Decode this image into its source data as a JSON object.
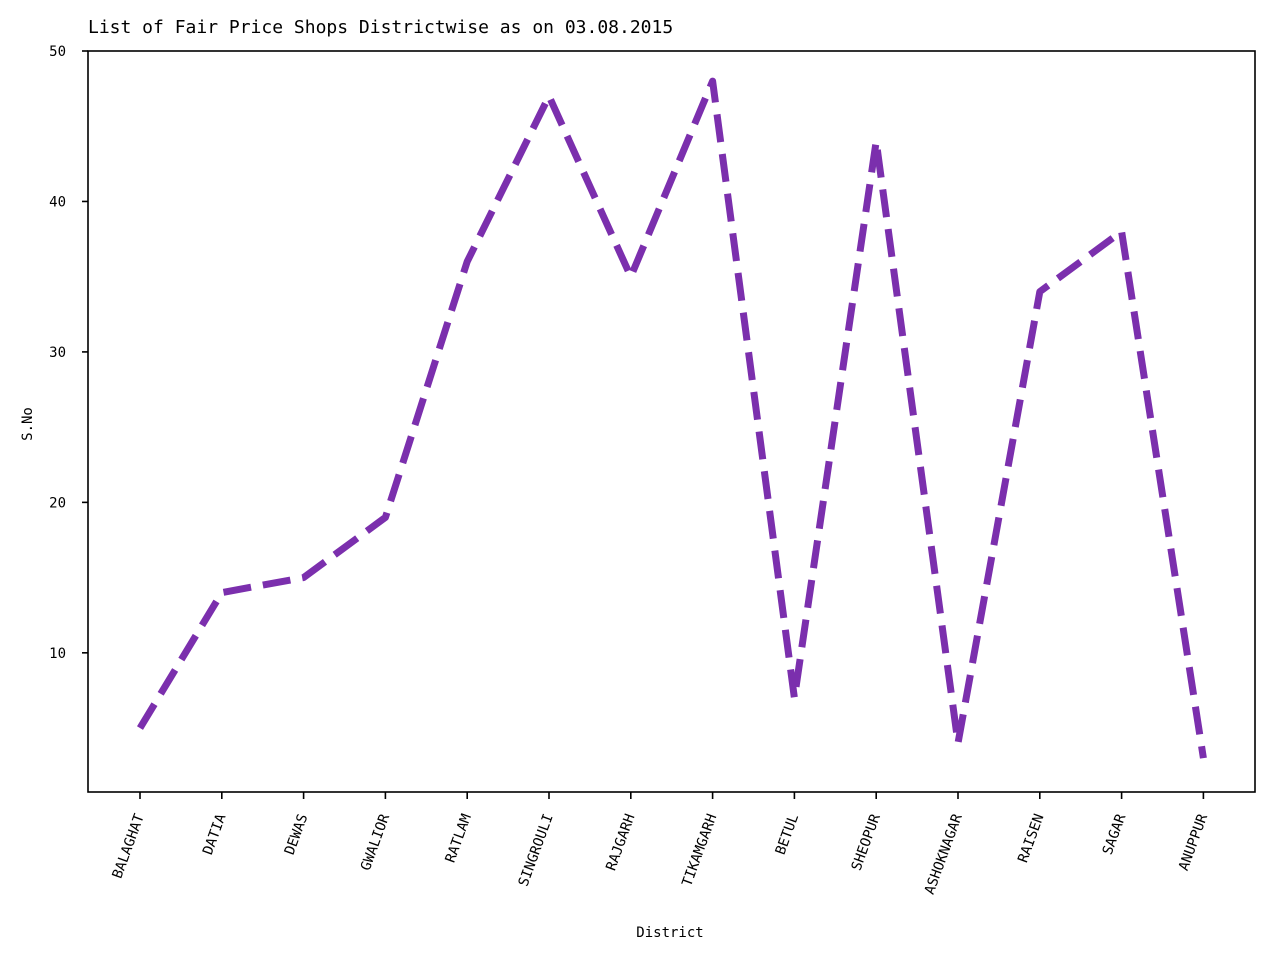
{
  "chart_data": {
    "type": "line",
    "title": "List of Fair Price Shops Districtwise as on 03.08.2015",
    "xlabel": "District",
    "ylabel": "S.No",
    "categories": [
      "BALAGHAT",
      "DATIA",
      "DEWAS",
      "GWALIOR",
      "RATLAM",
      "SINGROULI",
      "RAJGARH",
      "TIKAMGARH",
      "BETUL",
      "SHEOPUR",
      "ASHOKNAGAR",
      "RAISEN",
      "SAGAR",
      "ANUPPUR"
    ],
    "series": [
      {
        "values": [
          5,
          14,
          15,
          19,
          36,
          47,
          35,
          48,
          7,
          44,
          4,
          34,
          38,
          3
        ]
      }
    ],
    "ylim": [
      0.75,
      50.0
    ],
    "yticks": [
      10,
      20,
      30,
      40,
      50
    ],
    "grid": false,
    "line_color": "#7b2fad",
    "line_style": "dashed"
  }
}
